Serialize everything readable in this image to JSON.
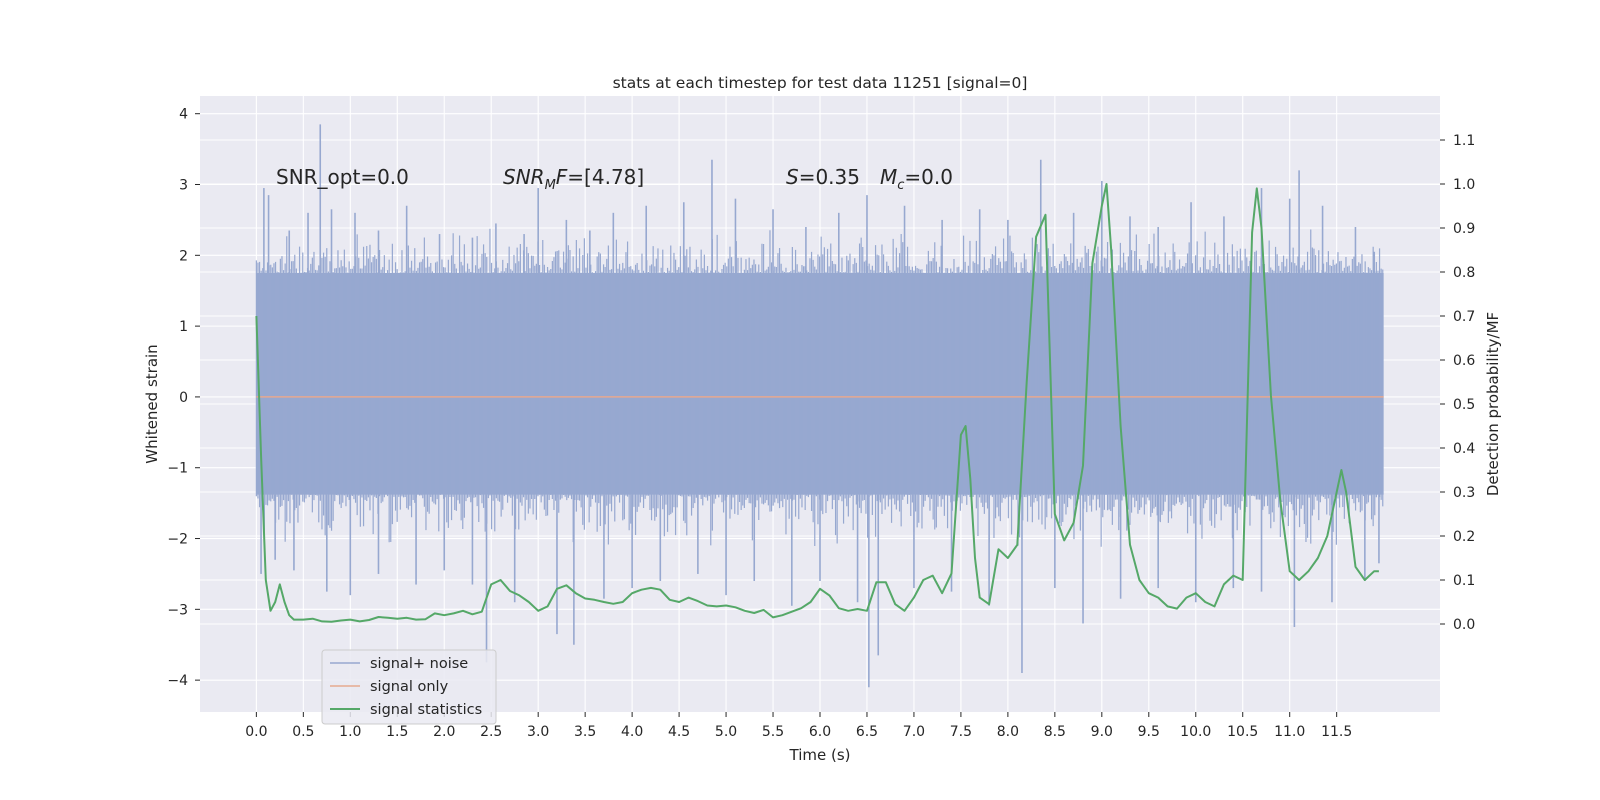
{
  "chart_data": {
    "type": "line",
    "title": "stats at each timestep for test data 11251 [signal=0]",
    "xlabel": "Time (s)",
    "ylabel": "Whitened strain",
    "ylabel_right": "Detection probability/MF",
    "xlim": [
      -0.6,
      12.6
    ],
    "ylim": [
      -4.45,
      4.25
    ],
    "ylim_right": [
      -0.2,
      1.2
    ],
    "x_ticks": [
      "0.0",
      "0.5",
      "1.0",
      "1.5",
      "2.0",
      "2.5",
      "3.0",
      "3.5",
      "4.0",
      "4.5",
      "5.0",
      "5.5",
      "6.0",
      "6.5",
      "7.0",
      "7.5",
      "8.0",
      "8.5",
      "9.0",
      "9.5",
      "10.0",
      "10.5",
      "11.0",
      "11.5"
    ],
    "y_ticks": [
      "4",
      "3",
      "2",
      "1",
      "0",
      "−1",
      "−2",
      "−3",
      "−4"
    ],
    "y_ticks_right": [
      "1.1",
      "1.0",
      "0.9",
      "0.8",
      "0.7",
      "0.6",
      "0.5",
      "0.4",
      "0.3",
      "0.2",
      "0.1",
      "0.0"
    ],
    "grid": true,
    "legend": {
      "position": "lower-left",
      "entries": [
        {
          "label": "signal+ noise",
          "color": "#97a8d0"
        },
        {
          "label": "signal only",
          "color": "#e6a990"
        },
        {
          "label": "signal statistics",
          "color": "#55a868"
        }
      ]
    },
    "annotations": {
      "snr_opt": "SNR_opt=0.0",
      "snr_mf_sym": "SNR",
      "snr_mf_sub": "M",
      "snr_mf_f": "F",
      "snr_mf_val": "=[4.78]",
      "s_sym": "S",
      "s_val": "=0.35",
      "mc_sym": "M",
      "mc_sub": "c",
      "mc_val": "=0.0"
    },
    "series": [
      {
        "name": "signal+ noise",
        "axis": "left",
        "color": "#97a8d0",
        "x_range": [
          0.0,
          12.0
        ],
        "band_range": [
          -1.38,
          1.75
        ],
        "upper_spikes": [
          {
            "x": 0.08,
            "y": 2.95
          },
          {
            "x": 0.13,
            "y": 2.85
          },
          {
            "x": 0.35,
            "y": 2.35
          },
          {
            "x": 0.55,
            "y": 2.6
          },
          {
            "x": 0.68,
            "y": 3.85
          },
          {
            "x": 0.8,
            "y": 2.65
          },
          {
            "x": 1.05,
            "y": 2.6
          },
          {
            "x": 1.3,
            "y": 2.35
          },
          {
            "x": 1.6,
            "y": 2.7
          },
          {
            "x": 1.95,
            "y": 2.3
          },
          {
            "x": 2.3,
            "y": 2.25
          },
          {
            "x": 2.55,
            "y": 2.45
          },
          {
            "x": 2.85,
            "y": 2.3
          },
          {
            "x": 3.0,
            "y": 2.95
          },
          {
            "x": 3.3,
            "y": 2.5
          },
          {
            "x": 3.55,
            "y": 2.35
          },
          {
            "x": 3.8,
            "y": 2.6
          },
          {
            "x": 4.15,
            "y": 2.7
          },
          {
            "x": 4.55,
            "y": 2.75
          },
          {
            "x": 4.85,
            "y": 3.35
          },
          {
            "x": 5.1,
            "y": 2.8
          },
          {
            "x": 5.5,
            "y": 2.65
          },
          {
            "x": 5.85,
            "y": 2.4
          },
          {
            "x": 6.2,
            "y": 2.6
          },
          {
            "x": 6.5,
            "y": 2.85
          },
          {
            "x": 6.9,
            "y": 2.7
          },
          {
            "x": 7.3,
            "y": 2.5
          },
          {
            "x": 7.7,
            "y": 2.65
          },
          {
            "x": 8.0,
            "y": 2.5
          },
          {
            "x": 8.35,
            "y": 3.35
          },
          {
            "x": 8.7,
            "y": 2.6
          },
          {
            "x": 9.0,
            "y": 3.05
          },
          {
            "x": 9.3,
            "y": 2.55
          },
          {
            "x": 9.6,
            "y": 2.4
          },
          {
            "x": 9.95,
            "y": 2.75
          },
          {
            "x": 10.3,
            "y": 2.55
          },
          {
            "x": 10.7,
            "y": 2.95
          },
          {
            "x": 11.0,
            "y": 2.8
          },
          {
            "x": 11.1,
            "y": 3.2
          },
          {
            "x": 11.35,
            "y": 2.7
          },
          {
            "x": 11.7,
            "y": 2.4
          },
          {
            "x": 11.9,
            "y": 2.05
          }
        ],
        "lower_spikes": [
          {
            "x": 0.05,
            "y": -2.5
          },
          {
            "x": 0.2,
            "y": -2.3
          },
          {
            "x": 0.4,
            "y": -2.45
          },
          {
            "x": 0.75,
            "y": -2.75
          },
          {
            "x": 1.0,
            "y": -2.8
          },
          {
            "x": 1.3,
            "y": -2.5
          },
          {
            "x": 1.7,
            "y": -2.65
          },
          {
            "x": 2.0,
            "y": -2.45
          },
          {
            "x": 2.3,
            "y": -2.65
          },
          {
            "x": 2.45,
            "y": -3.75
          },
          {
            "x": 2.75,
            "y": -2.9
          },
          {
            "x": 3.2,
            "y": -3.35
          },
          {
            "x": 3.38,
            "y": -3.5
          },
          {
            "x": 3.7,
            "y": -2.85
          },
          {
            "x": 4.0,
            "y": -2.7
          },
          {
            "x": 4.3,
            "y": -2.6
          },
          {
            "x": 4.7,
            "y": -2.5
          },
          {
            "x": 5.0,
            "y": -2.8
          },
          {
            "x": 5.3,
            "y": -2.6
          },
          {
            "x": 5.7,
            "y": -2.95
          },
          {
            "x": 6.0,
            "y": -2.6
          },
          {
            "x": 6.4,
            "y": -2.9
          },
          {
            "x": 6.52,
            "y": -4.1
          },
          {
            "x": 6.62,
            "y": -3.65
          },
          {
            "x": 7.0,
            "y": -2.7
          },
          {
            "x": 7.4,
            "y": -2.75
          },
          {
            "x": 7.8,
            "y": -2.95
          },
          {
            "x": 8.15,
            "y": -3.9
          },
          {
            "x": 8.5,
            "y": -2.7
          },
          {
            "x": 8.8,
            "y": -3.2
          },
          {
            "x": 9.2,
            "y": -2.85
          },
          {
            "x": 9.6,
            "y": -2.7
          },
          {
            "x": 10.0,
            "y": -2.9
          },
          {
            "x": 10.4,
            "y": -2.7
          },
          {
            "x": 10.7,
            "y": -2.75
          },
          {
            "x": 11.05,
            "y": -3.25
          },
          {
            "x": 11.45,
            "y": -2.9
          },
          {
            "x": 11.8,
            "y": -2.6
          },
          {
            "x": 11.95,
            "y": -2.35
          }
        ]
      },
      {
        "name": "signal only",
        "axis": "left",
        "color": "#e6a990",
        "x": [
          0.0,
          12.0
        ],
        "y": [
          0.0,
          0.0
        ]
      },
      {
        "name": "signal statistics",
        "axis": "right",
        "color": "#55a868",
        "x": [
          0.0,
          0.05,
          0.1,
          0.15,
          0.2,
          0.25,
          0.3,
          0.35,
          0.4,
          0.5,
          0.6,
          0.7,
          0.8,
          0.9,
          1.0,
          1.1,
          1.2,
          1.3,
          1.4,
          1.5,
          1.6,
          1.7,
          1.8,
          1.9,
          2.0,
          2.1,
          2.2,
          2.3,
          2.4,
          2.5,
          2.6,
          2.7,
          2.8,
          2.9,
          3.0,
          3.1,
          3.2,
          3.3,
          3.4,
          3.5,
          3.6,
          3.7,
          3.8,
          3.9,
          4.0,
          4.1,
          4.2,
          4.3,
          4.4,
          4.5,
          4.6,
          4.7,
          4.8,
          4.9,
          5.0,
          5.1,
          5.2,
          5.3,
          5.4,
          5.5,
          5.6,
          5.7,
          5.8,
          5.9,
          6.0,
          6.1,
          6.2,
          6.3,
          6.4,
          6.5,
          6.6,
          6.7,
          6.8,
          6.9,
          7.0,
          7.1,
          7.2,
          7.3,
          7.4,
          7.5,
          7.55,
          7.6,
          7.65,
          7.7,
          7.8,
          7.9,
          8.0,
          8.1,
          8.2,
          8.3,
          8.4,
          8.5,
          8.6,
          8.7,
          8.8,
          8.9,
          9.0,
          9.05,
          9.1,
          9.2,
          9.3,
          9.4,
          9.5,
          9.6,
          9.7,
          9.8,
          9.9,
          10.0,
          10.1,
          10.2,
          10.3,
          10.4,
          10.5,
          10.6,
          10.65,
          10.7,
          10.8,
          10.9,
          11.0,
          11.1,
          11.2,
          11.3,
          11.4,
          11.5,
          11.55,
          11.6,
          11.7,
          11.8,
          11.9,
          11.95
        ],
        "y": [
          0.7,
          0.38,
          0.1,
          0.03,
          0.05,
          0.09,
          0.05,
          0.02,
          0.01,
          0.01,
          0.012,
          0.006,
          0.005,
          0.008,
          0.01,
          0.006,
          0.009,
          0.016,
          0.014,
          0.012,
          0.014,
          0.01,
          0.011,
          0.024,
          0.02,
          0.024,
          0.03,
          0.022,
          0.028,
          0.09,
          0.1,
          0.075,
          0.065,
          0.05,
          0.03,
          0.04,
          0.08,
          0.088,
          0.07,
          0.058,
          0.055,
          0.05,
          0.046,
          0.05,
          0.07,
          0.078,
          0.082,
          0.078,
          0.055,
          0.05,
          0.06,
          0.052,
          0.042,
          0.04,
          0.042,
          0.038,
          0.03,
          0.025,
          0.032,
          0.015,
          0.02,
          0.028,
          0.036,
          0.05,
          0.08,
          0.065,
          0.036,
          0.03,
          0.034,
          0.03,
          0.095,
          0.095,
          0.045,
          0.03,
          0.06,
          0.1,
          0.11,
          0.07,
          0.115,
          0.43,
          0.45,
          0.33,
          0.15,
          0.06,
          0.045,
          0.17,
          0.15,
          0.18,
          0.55,
          0.88,
          0.93,
          0.25,
          0.19,
          0.23,
          0.36,
          0.82,
          0.95,
          1.0,
          0.85,
          0.45,
          0.18,
          0.1,
          0.07,
          0.06,
          0.04,
          0.035,
          0.06,
          0.07,
          0.05,
          0.04,
          0.09,
          0.11,
          0.1,
          0.89,
          0.99,
          0.9,
          0.52,
          0.28,
          0.12,
          0.1,
          0.12,
          0.15,
          0.2,
          0.3,
          0.35,
          0.3,
          0.13,
          0.1,
          0.12,
          0.12
        ]
      }
    ]
  }
}
